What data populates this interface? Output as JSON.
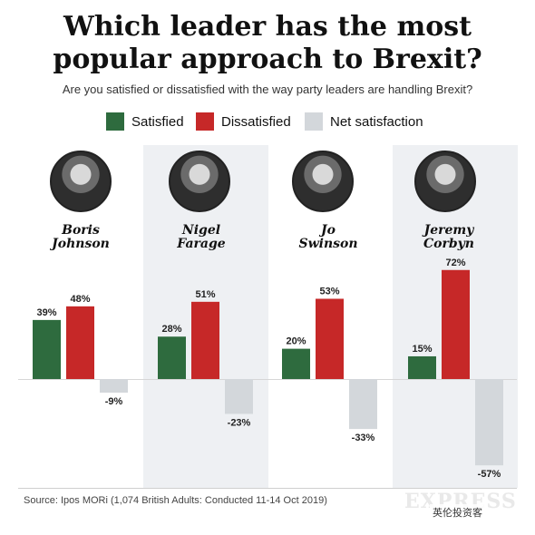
{
  "title_line1": "Which leader has the most",
  "title_line2": "popular approach to Brexit?",
  "subtitle": "Are you satisfied or dissatisfied with the way party leaders are handling Brexit?",
  "legend": [
    {
      "label": "Satisfied",
      "color": "#2e6b3e"
    },
    {
      "label": "Dissatisfied",
      "color": "#c62828"
    },
    {
      "label": "Net satisfaction",
      "color": "#d3d7db"
    }
  ],
  "chart_data": {
    "type": "bar",
    "categories": [
      "Boris Johnson",
      "Nigel Farage",
      "Jo Swinson",
      "Jeremy Corbyn"
    ],
    "series": [
      {
        "name": "Satisfied",
        "values": [
          39,
          28,
          20,
          15
        ],
        "color": "#2e6b3e"
      },
      {
        "name": "Dissatisfied",
        "values": [
          48,
          51,
          53,
          72
        ],
        "color": "#c62828"
      },
      {
        "name": "Net satisfaction",
        "values": [
          -9,
          -23,
          -33,
          -57
        ],
        "color": "#d3d7db"
      }
    ],
    "value_labels": [
      [
        "39%",
        "48%",
        "-9%"
      ],
      [
        "28%",
        "51%",
        "-23%"
      ],
      [
        "20%",
        "53%",
        "-33%"
      ],
      [
        "15%",
        "72%",
        "-57%"
      ]
    ],
    "leaders": [
      {
        "line1": "Boris",
        "line2": "Johnson"
      },
      {
        "line1": "Nigel",
        "line2": "Farage"
      },
      {
        "line1": "Jo",
        "line2": "Swinson"
      },
      {
        "line1": "Jeremy",
        "line2": "Corbyn"
      }
    ],
    "xlabel": "",
    "ylabel": "",
    "grid": false,
    "legend_position": "top"
  },
  "source": "Source: Ipos MORi (1,074 British Adults: Conducted 11-14 Oct 2019)",
  "watermark": "EXPRESS",
  "wechat_label": "英伦投资客"
}
